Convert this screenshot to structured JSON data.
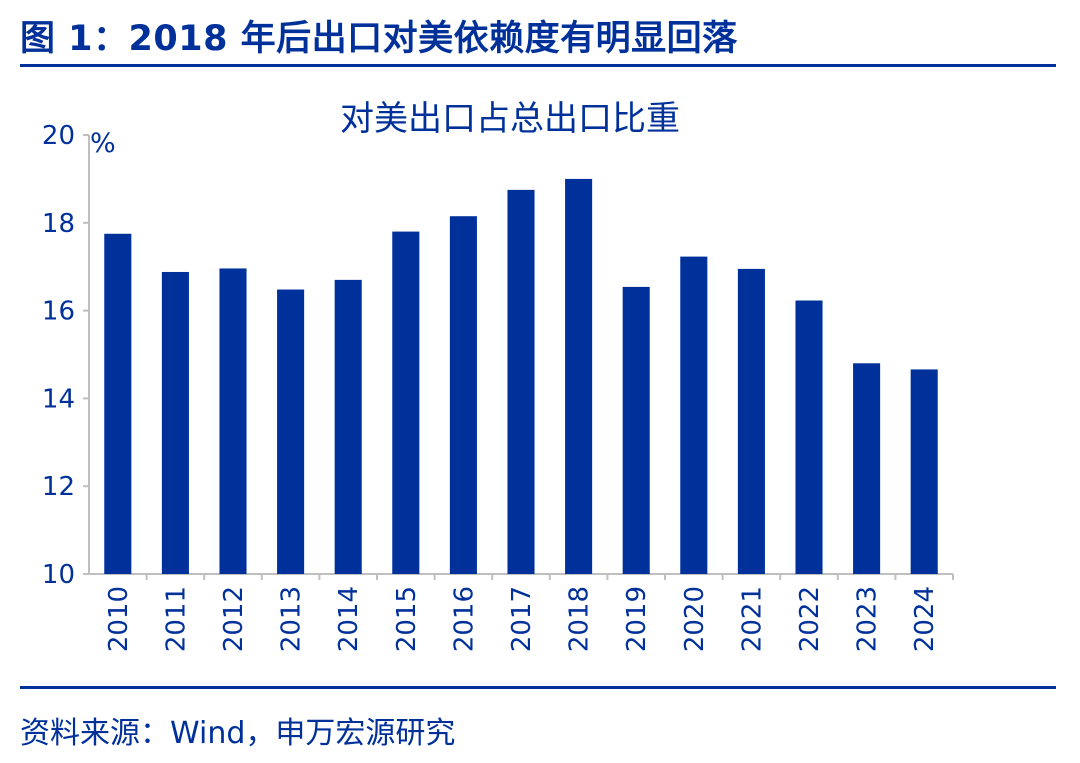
{
  "figure": {
    "title": "图 1：2018 年后出口对美依赖度有明显回落",
    "source": "资料来源：Wind，申万宏源研究"
  },
  "colors": {
    "bar": "#00309a",
    "text": "#00309a",
    "axis": "#bfbfbf"
  },
  "chart_data": {
    "type": "bar",
    "title": "对美出口占总出口比重",
    "ylabel": "%",
    "xlabel": "",
    "categories": [
      "2010",
      "2011",
      "2012",
      "2013",
      "2014",
      "2015",
      "2016",
      "2017",
      "2018",
      "2019",
      "2020",
      "2021",
      "2022",
      "2023",
      "2024"
    ],
    "values": [
      17.75,
      16.88,
      16.96,
      16.48,
      16.7,
      17.8,
      18.15,
      18.75,
      19.0,
      16.54,
      17.23,
      16.95,
      16.23,
      14.8,
      14.66
    ],
    "ylim": [
      10,
      20
    ],
    "yticks": [
      10,
      12,
      14,
      16,
      18,
      20
    ],
    "grid": false,
    "legend": "none"
  }
}
